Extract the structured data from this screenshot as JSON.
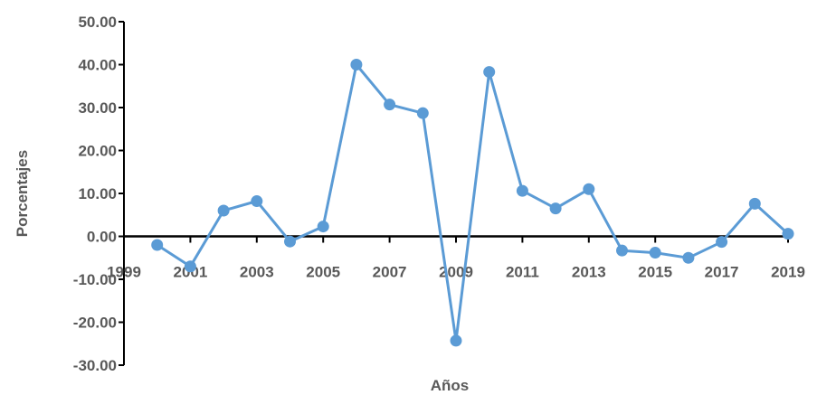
{
  "chart_data": {
    "type": "line",
    "title": "",
    "xlabel": "Años",
    "ylabel": "Porcentajes",
    "xlim": [
      1999,
      2019
    ],
    "ylim": [
      -30,
      50
    ],
    "ytick_step": 10,
    "xticks": [
      "1999",
      "2001",
      "2003",
      "2005",
      "2007",
      "2009",
      "2011",
      "2013",
      "2015",
      "2017",
      "2019"
    ],
    "yticks": [
      "50.00",
      "40.00",
      "30.00",
      "20.00",
      "10.00",
      "0.00",
      "-10.00",
      "-20.00",
      "-30.00"
    ],
    "grid": false,
    "legend": "none",
    "series_color": "#5B9BD5",
    "axis_color": "#000000",
    "series": [
      {
        "x": [
          2000,
          2001,
          2002,
          2003,
          2004,
          2005,
          2006,
          2007,
          2008,
          2009,
          2010,
          2011,
          2012,
          2013,
          2014,
          2015,
          2016,
          2017,
          2018,
          2019
        ],
        "values": [
          -2.0,
          -7.0,
          6.0,
          8.2,
          -1.2,
          2.3,
          40.0,
          30.7,
          28.7,
          -24.3,
          38.3,
          10.6,
          6.5,
          11.0,
          -3.3,
          -3.8,
          -5.0,
          -1.3,
          7.6,
          0.6
        ]
      }
    ]
  }
}
